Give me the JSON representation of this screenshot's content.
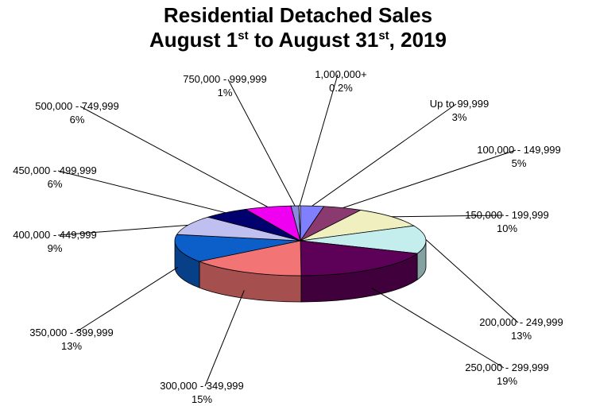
{
  "title": {
    "line1": "Residential Detached Sales",
    "line2_pre": "August 1",
    "line2_sup1": "st",
    "line2_mid": " to August 31",
    "line2_sup2": "st",
    "line2_post": ", 2019"
  },
  "chart_data": {
    "type": "pie",
    "title": "Residential Detached Sales August 1st to August 31st, 2019",
    "three_d": true,
    "slices": [
      {
        "label": "Up to 99,999",
        "value": 3,
        "value_label": "3%",
        "color": "#8080ff"
      },
      {
        "label": "100,000 - 149,999",
        "value": 5,
        "value_label": "5%",
        "color": "#8a3a6e"
      },
      {
        "label": "150,000 - 199,999",
        "value": 10,
        "value_label": "10%",
        "color": "#efefc0"
      },
      {
        "label": "200,000 - 249,999",
        "value": 13,
        "value_label": "13%",
        "color": "#c4eeee"
      },
      {
        "label": "250,000 - 299,999",
        "value": 19,
        "value_label": "19%",
        "color": "#5c0058"
      },
      {
        "label": "300,000 - 349,999",
        "value": 15,
        "value_label": "15%",
        "color": "#f27474"
      },
      {
        "label": "350,000 - 399,999",
        "value": 13,
        "value_label": "13%",
        "color": "#0c5ec8"
      },
      {
        "label": "400,000 - 449,999",
        "value": 9,
        "value_label": "9%",
        "color": "#c0c0f0"
      },
      {
        "label": "450,000 - 499,999",
        "value": 6,
        "value_label": "6%",
        "color": "#00006e"
      },
      {
        "label": "500,000 - 749,999",
        "value": 6,
        "value_label": "6%",
        "color": "#f000f0"
      },
      {
        "label": "750,000 - 999,999",
        "value": 1,
        "value_label": "1%",
        "color": "#8a8ae0"
      },
      {
        "label": "1,000,000+",
        "value": 0.2,
        "value_label": "0.2%",
        "color": "#ffffff"
      }
    ]
  }
}
